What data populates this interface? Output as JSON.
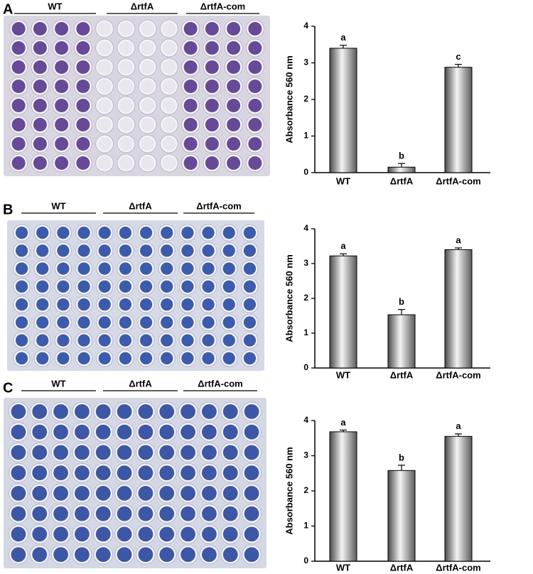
{
  "chart_data": [
    {
      "type": "bar",
      "panel": "A",
      "plate_labels": [
        "WT",
        "ΔrtfA",
        "ΔrtfA-com"
      ],
      "ylabel": "Absorbance 560 nm",
      "categories": [
        "WT",
        "ΔrtfA",
        "ΔrtfA-com"
      ],
      "values": [
        3.4,
        0.15,
        2.88
      ],
      "errors": [
        0.08,
        0.1,
        0.08
      ],
      "annotations": [
        "a",
        "b",
        "c"
      ],
      "ylim": [
        0,
        4
      ],
      "yticks": [
        0,
        1,
        2,
        3,
        4
      ]
    },
    {
      "type": "bar",
      "panel": "B",
      "plate_labels": [
        "WT",
        "ΔrtfA",
        "ΔrtfA-com"
      ],
      "ylabel": "Absorbance 560 nm",
      "categories": [
        "WT",
        "ΔrtfA",
        "ΔrtfA-com"
      ],
      "values": [
        3.22,
        1.53,
        3.4
      ],
      "errors": [
        0.06,
        0.15,
        0.05
      ],
      "annotations": [
        "a",
        "b",
        "a"
      ],
      "ylim": [
        0,
        4
      ],
      "yticks": [
        0,
        1,
        2,
        3,
        4
      ]
    },
    {
      "type": "bar",
      "panel": "C",
      "plate_labels": [
        "WT",
        "ΔrtfA",
        "ΔrtfA-com"
      ],
      "ylabel": "Absorbance 560 nm",
      "categories": [
        "WT",
        "ΔrtfA",
        "ΔrtfA-com"
      ],
      "values": [
        3.68,
        2.58,
        3.55
      ],
      "errors": [
        0.05,
        0.15,
        0.07
      ],
      "annotations": [
        "a",
        "b",
        "a"
      ],
      "ylim": [
        0,
        4
      ],
      "yticks": [
        0,
        1,
        2,
        3,
        4
      ]
    }
  ]
}
